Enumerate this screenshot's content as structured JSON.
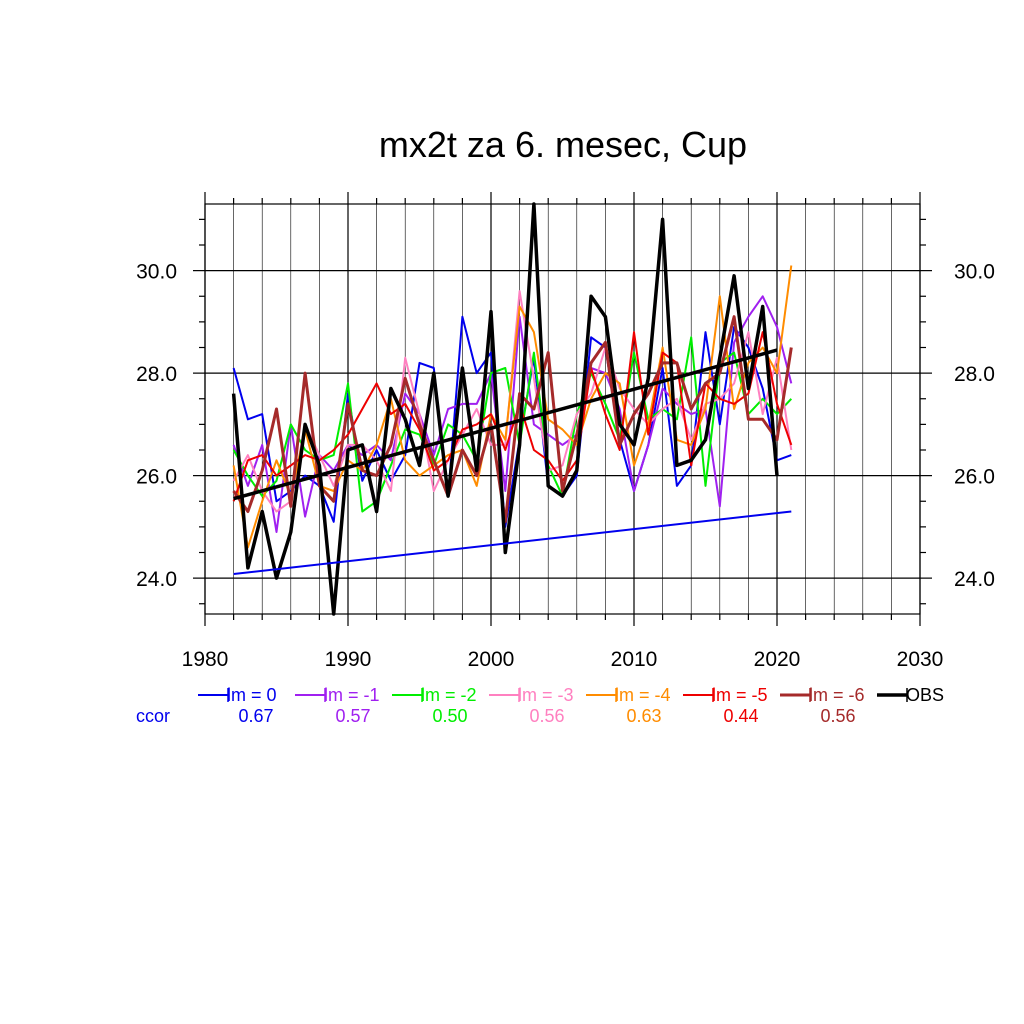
{
  "chart_data": {
    "type": "line",
    "title": "mx2t za 6. mesec, Cup",
    "xlabel": "",
    "ylabel": "",
    "xlim": [
      1980,
      2030
    ],
    "ylim": [
      23.3,
      31.3
    ],
    "xticks": [
      1980,
      1990,
      2000,
      2010,
      2020,
      2030
    ],
    "yticks": [
      24.0,
      26.0,
      28.0,
      30.0
    ],
    "ytick_labels": [
      "24.0",
      "26.0",
      "28.0",
      "30.0"
    ],
    "grid": true,
    "legend_position": "bottom",
    "ccor_label": "ccor",
    "x": [
      1982,
      1983,
      1984,
      1985,
      1986,
      1987,
      1988,
      1989,
      1990,
      1991,
      1992,
      1993,
      1994,
      1995,
      1996,
      1997,
      1998,
      1999,
      2000,
      2001,
      2002,
      2003,
      2004,
      2005,
      2006,
      2007,
      2008,
      2009,
      2010,
      2011,
      2012,
      2013,
      2014,
      2015,
      2016,
      2017,
      2018,
      2019,
      2020,
      2021
    ],
    "series": [
      {
        "name": "lm = 0",
        "color": "#0000ee",
        "ccor": "0.67",
        "width": 2,
        "values": [
          28.1,
          27.1,
          27.2,
          25.5,
          25.7,
          26.0,
          25.8,
          25.1,
          27.6,
          25.9,
          26.5,
          25.9,
          26.4,
          28.2,
          28.1,
          25.6,
          29.1,
          28.0,
          28.4,
          25.0,
          26.7,
          28.3,
          25.8,
          25.6,
          26.0,
          28.7,
          28.5,
          26.7,
          25.7,
          26.6,
          28.1,
          25.8,
          26.2,
          28.8,
          27.0,
          28.9,
          28.5,
          27.7,
          26.3,
          26.4
        ]
      },
      {
        "name": "lm = -1",
        "color": "#a020f0",
        "ccor": "0.57",
        "width": 2,
        "values": [
          26.6,
          25.8,
          26.6,
          24.9,
          27.0,
          25.2,
          26.4,
          26.1,
          26.6,
          26.4,
          26.6,
          26.3,
          27.6,
          27.2,
          26.4,
          27.3,
          27.4,
          27.4,
          28.0,
          25.7,
          29.1,
          27.0,
          26.8,
          26.6,
          26.8,
          28.1,
          28.0,
          27.3,
          25.7,
          26.6,
          27.7,
          27.4,
          27.2,
          27.3,
          25.4,
          28.6,
          29.1,
          29.5,
          28.9,
          27.8
        ]
      },
      {
        "name": "lm = -2",
        "color": "#00ee00",
        "ccor": "0.50",
        "width": 2,
        "values": [
          26.5,
          26.0,
          25.6,
          25.9,
          27.0,
          26.5,
          26.3,
          26.4,
          27.8,
          25.3,
          25.5,
          26.2,
          26.9,
          26.8,
          26.2,
          27.0,
          26.8,
          26.3,
          28.0,
          28.1,
          26.6,
          28.4,
          26.2,
          25.6,
          27.2,
          28.0,
          27.4,
          26.7,
          28.4,
          27.1,
          27.3,
          27.1,
          28.7,
          25.8,
          28.2,
          28.4,
          27.2,
          27.5,
          27.2,
          27.5
        ]
      },
      {
        "name": "lm = -3",
        "color": "#ff80c0",
        "ccor": "0.56",
        "width": 2,
        "values": [
          25.9,
          26.4,
          25.7,
          25.3,
          25.5,
          27.0,
          26.4,
          25.8,
          26.6,
          26.6,
          26.3,
          25.7,
          28.3,
          27.2,
          25.7,
          26.3,
          26.8,
          27.3,
          26.6,
          26.6,
          29.6,
          27.9,
          26.1,
          26.2,
          27.2,
          27.6,
          28.5,
          27.7,
          27.3,
          27.0,
          27.3,
          27.5,
          26.7,
          27.4,
          27.5,
          27.8,
          28.8,
          27.2,
          28.3,
          26.5
        ]
      },
      {
        "name": "lm = -4",
        "color": "#ff8c00",
        "ccor": "0.63",
        "width": 2,
        "values": [
          26.2,
          24.6,
          25.5,
          26.3,
          25.6,
          26.9,
          25.8,
          25.7,
          26.3,
          26.1,
          26.6,
          27.5,
          26.3,
          26.0,
          26.2,
          26.4,
          26.5,
          25.8,
          27.2,
          26.7,
          29.3,
          28.8,
          27.1,
          26.9,
          26.6,
          27.5,
          28.0,
          27.8,
          26.2,
          27.0,
          28.5,
          26.7,
          26.6,
          27.3,
          29.5,
          27.3,
          28.2,
          28.5,
          28.0,
          30.1
        ]
      },
      {
        "name": "lm = -5",
        "color": "#ee0000",
        "ccor": "0.44",
        "width": 2,
        "values": [
          25.5,
          26.3,
          26.4,
          26.0,
          26.2,
          26.4,
          26.3,
          26.5,
          26.8,
          27.3,
          27.8,
          27.2,
          27.4,
          26.9,
          26.1,
          26.3,
          26.9,
          27.0,
          27.2,
          26.5,
          27.4,
          26.5,
          26.3,
          25.9,
          26.3,
          28.1,
          27.2,
          26.5,
          28.8,
          26.8,
          28.4,
          28.2,
          26.2,
          27.8,
          27.5,
          27.4,
          27.6,
          28.8,
          27.4,
          26.6
        ]
      },
      {
        "name": "lm = -6",
        "color": "#a52a2a",
        "ccor": "0.56",
        "width": 3,
        "values": [
          25.7,
          25.3,
          26.1,
          27.3,
          25.4,
          28.0,
          25.8,
          25.5,
          27.4,
          26.1,
          26.0,
          26.6,
          27.9,
          27.0,
          26.3,
          25.6,
          26.5,
          26.0,
          27.0,
          25.1,
          27.6,
          27.3,
          28.4,
          25.7,
          26.8,
          28.2,
          28.6,
          26.6,
          27.2,
          27.6,
          28.2,
          28.2,
          27.3,
          27.8,
          28.0,
          29.1,
          27.1,
          27.1,
          26.7,
          28.5
        ]
      },
      {
        "name": "OBS",
        "color": "#000000",
        "ccor": "",
        "width": 3.5,
        "values": [
          27.6,
          24.2,
          25.3,
          24.0,
          24.9,
          27.0,
          26.2,
          23.3,
          26.5,
          26.6,
          25.3,
          27.7,
          27.1,
          26.2,
          28.0,
          25.6,
          28.1,
          26.1,
          29.2,
          24.5,
          26.6,
          31.3,
          25.8,
          25.6,
          26.1,
          29.5,
          29.1,
          27.0,
          26.6,
          27.9,
          31.0,
          26.2,
          26.3,
          26.7,
          28.3,
          29.9,
          27.7,
          29.3,
          26.0,
          null
        ]
      }
    ],
    "trend_lines": [
      {
        "color": "#0000ee",
        "width": 2,
        "x": [
          1982,
          2021
        ],
        "y": [
          24.08,
          25.3
        ]
      },
      {
        "color": "#000000",
        "width": 3.5,
        "x": [
          1982,
          2020
        ],
        "y": [
          25.55,
          28.45
        ]
      }
    ]
  }
}
